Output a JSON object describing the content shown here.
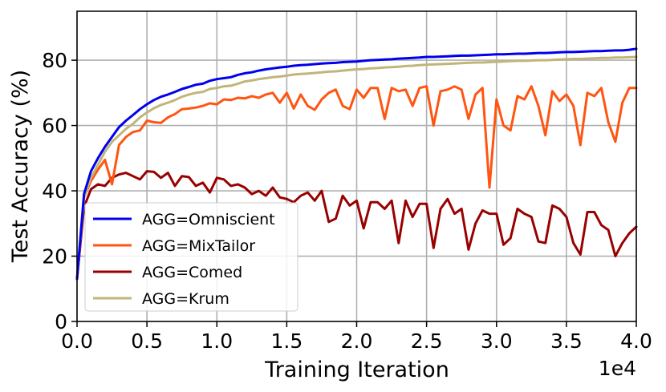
{
  "chart_data": {
    "type": "line",
    "xlabel": "Training Iteration",
    "ylabel": "Test Accuracy (%)",
    "x_offset_label": "1e4",
    "xlim": [
      0,
      40000
    ],
    "ylim": [
      0,
      95
    ],
    "x_ticks": [
      0,
      5000,
      10000,
      15000,
      20000,
      25000,
      30000,
      35000,
      40000
    ],
    "x_tick_labels": [
      "0.0",
      "0.5",
      "1.0",
      "1.5",
      "2.0",
      "2.5",
      "3.0",
      "3.5",
      "4.0"
    ],
    "y_ticks": [
      0,
      20,
      40,
      60,
      80
    ],
    "y_tick_labels": [
      "0",
      "20",
      "40",
      "60",
      "80"
    ],
    "grid": true,
    "legend_position": "lower-left",
    "x": [
      0,
      500,
      1000,
      1500,
      2000,
      2500,
      3000,
      3500,
      4000,
      4500,
      5000,
      5500,
      6000,
      6500,
      7000,
      7500,
      8000,
      8500,
      9000,
      9500,
      10000,
      10500,
      11000,
      11500,
      12000,
      12500,
      13000,
      13500,
      14000,
      14500,
      15000,
      15500,
      16000,
      16500,
      17000,
      17500,
      18000,
      18500,
      19000,
      19500,
      20000,
      20500,
      21000,
      21500,
      22000,
      22500,
      23000,
      23500,
      24000,
      24500,
      25000,
      25500,
      26000,
      26500,
      27000,
      27500,
      28000,
      28500,
      29000,
      29500,
      30000,
      30500,
      31000,
      31500,
      32000,
      32500,
      33000,
      33500,
      34000,
      34500,
      35000,
      35500,
      36000,
      36500,
      37000,
      37500,
      38000,
      38500,
      39000,
      39500,
      40000
    ],
    "series": [
      {
        "name": "AGG=Omniscient",
        "color": "#0000ee",
        "values": [
          13,
          39,
          46,
          50,
          53.5,
          56.5,
          59.5,
          61.5,
          63.2,
          65,
          66.5,
          67.8,
          68.8,
          69.5,
          70.3,
          71.2,
          71.8,
          72.5,
          72.8,
          73.7,
          74.2,
          74.5,
          74.8,
          75.5,
          76,
          76.3,
          76.8,
          77.2,
          77.5,
          77.8,
          78,
          78.3,
          78.5,
          78.6,
          78.8,
          79,
          79.1,
          79.2,
          79.4,
          79.5,
          79.6,
          79.8,
          80,
          80.1,
          80.2,
          80.3,
          80.5,
          80.6,
          80.7,
          80.8,
          81,
          81,
          81.1,
          81.2,
          81.3,
          81.4,
          81.4,
          81.5,
          81.6,
          81.7,
          81.8,
          81.8,
          81.9,
          82,
          82,
          82.1,
          82.2,
          82.2,
          82.3,
          82.4,
          82.5,
          82.5,
          82.6,
          82.7,
          82.8,
          82.8,
          82.9,
          83,
          83,
          83.2,
          83.5
        ]
      },
      {
        "name": "AGG=MixTailor",
        "color": "#ff5511",
        "values": [
          13,
          38,
          43,
          46.5,
          49.5,
          42,
          54,
          56.5,
          58,
          58.5,
          61.5,
          61,
          60.8,
          62.5,
          63.5,
          65,
          65.2,
          65.5,
          66,
          66.8,
          66.5,
          68,
          67.8,
          68.5,
          68.3,
          69,
          68.5,
          69.5,
          70,
          67,
          70,
          65.2,
          69.5,
          66,
          64.8,
          68,
          70,
          71,
          66,
          65,
          71,
          68.5,
          71.5,
          71.5,
          62,
          71.5,
          70.5,
          71,
          66,
          71.5,
          72,
          60,
          70.5,
          71,
          72,
          71,
          62,
          69.5,
          71.5,
          41,
          68,
          60,
          58.5,
          69,
          68,
          72,
          66,
          57,
          70.5,
          67.5,
          69.5,
          66,
          54,
          70,
          69,
          71.5,
          61,
          55,
          67,
          71.5,
          71.5
        ]
      },
      {
        "name": "AGG=Comed",
        "color": "#990000",
        "values": [
          13,
          35,
          40.5,
          42,
          41.5,
          44,
          45,
          45.5,
          44.5,
          43.5,
          46,
          45.8,
          44,
          45.5,
          41.5,
          44.5,
          44.2,
          41.5,
          42.5,
          39.5,
          44,
          43.5,
          41.5,
          42,
          41,
          39,
          40,
          38.5,
          41,
          38,
          37.5,
          36.5,
          38.5,
          39.5,
          37,
          40,
          30.5,
          31.5,
          38.5,
          35.5,
          37,
          28.5,
          36.5,
          36.5,
          34.5,
          37,
          24,
          37,
          32,
          36,
          36,
          22.5,
          34.5,
          37.5,
          33,
          34.5,
          22,
          30,
          34,
          33,
          33,
          23.5,
          25.5,
          34.5,
          33,
          32,
          24.5,
          24,
          35.5,
          34.5,
          32,
          24,
          20.5,
          33.5,
          33.5,
          29.5,
          28,
          20,
          24,
          27,
          29
        ]
      },
      {
        "name": "AGG=Krum",
        "color": "#c0b679",
        "values": [
          13,
          38,
          44,
          48,
          52,
          55,
          57,
          59,
          60.5,
          62.5,
          64,
          65.3,
          66.3,
          67,
          67.8,
          68.8,
          69.5,
          70,
          70.3,
          71.2,
          71.5,
          72,
          72.2,
          72.8,
          73.5,
          73.8,
          74.2,
          74.5,
          74.8,
          75,
          75.3,
          75.6,
          75.8,
          75.9,
          76.1,
          76.3,
          76.5,
          76.6,
          76.8,
          77,
          77.2,
          77.3,
          77.5,
          77.6,
          77.8,
          77.9,
          78,
          78.2,
          78.3,
          78.5,
          78.6,
          78.7,
          78.8,
          78.9,
          79,
          79.1,
          79.2,
          79.3,
          79.3,
          79.4,
          79.5,
          79.6,
          79.7,
          79.8,
          79.8,
          79.9,
          80,
          80,
          80.1,
          80.2,
          80.3,
          80.4,
          80.4,
          80.5,
          80.6,
          80.7,
          80.7,
          80.8,
          80.8,
          80.9,
          81
        ]
      }
    ]
  }
}
